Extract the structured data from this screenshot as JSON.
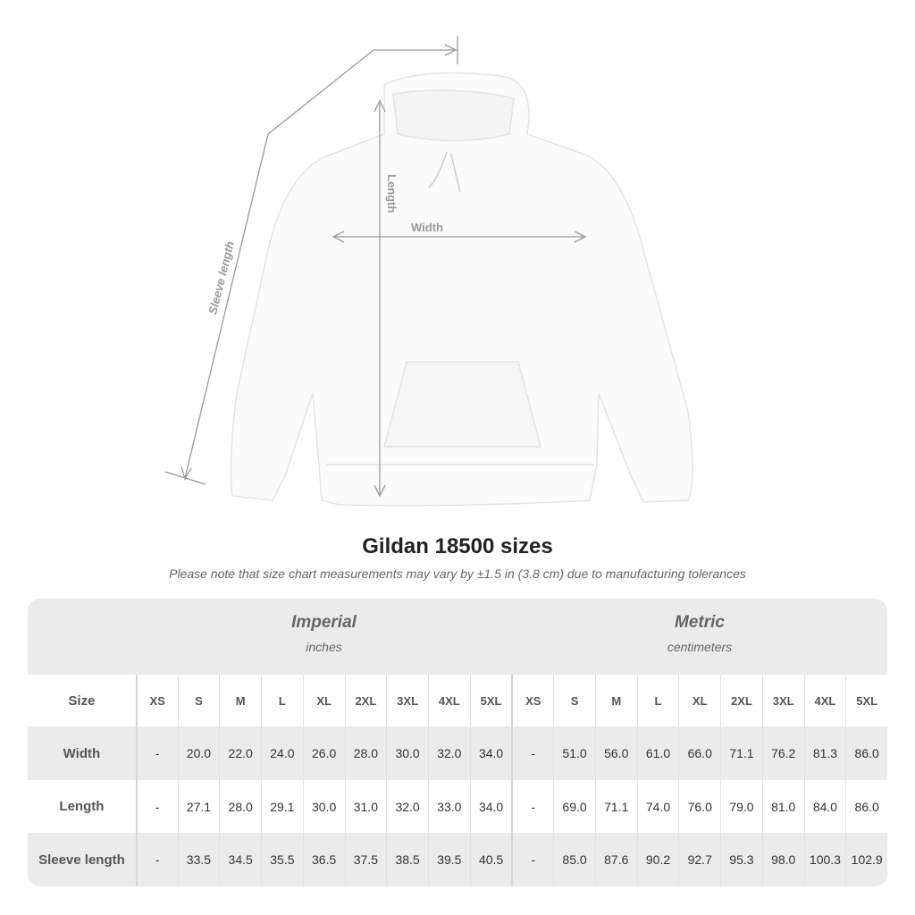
{
  "diagram": {
    "length_label": "Length",
    "width_label": "Width",
    "sleeve_label": "Sleeve length"
  },
  "title": "Gildan 18500 sizes",
  "subtitle": "Please note that size chart measurements may vary by ±1.5 in (3.8 cm) due to manufacturing tolerances",
  "table": {
    "imperial": {
      "name": "Imperial",
      "unit": "inches"
    },
    "metric": {
      "name": "Metric",
      "unit": "centimeters"
    },
    "size_label": "Size",
    "sizes": [
      "XS",
      "S",
      "M",
      "L",
      "XL",
      "2XL",
      "3XL",
      "4XL",
      "5XL"
    ],
    "rows": [
      {
        "label": "Width",
        "imperial": [
          "-",
          "20.0",
          "22.0",
          "24.0",
          "26.0",
          "28.0",
          "30.0",
          "32.0",
          "34.0"
        ],
        "metric": [
          "-",
          "51.0",
          "56.0",
          "61.0",
          "66.0",
          "71.1",
          "76.2",
          "81.3",
          "86.0"
        ]
      },
      {
        "label": "Length",
        "imperial": [
          "-",
          "27.1",
          "28.0",
          "29.1",
          "30.0",
          "31.0",
          "32.0",
          "33.0",
          "34.0"
        ],
        "metric": [
          "-",
          "69.0",
          "71.1",
          "74.0",
          "76.0",
          "79.0",
          "81.0",
          "84.0",
          "86.0"
        ]
      },
      {
        "label": "Sleeve length",
        "imperial": [
          "-",
          "33.5",
          "34.5",
          "35.5",
          "36.5",
          "37.5",
          "38.5",
          "39.5",
          "40.5"
        ],
        "metric": [
          "-",
          "85.0",
          "87.6",
          "90.2",
          "92.7",
          "95.3",
          "98.0",
          "100.3",
          "102.9"
        ]
      }
    ]
  },
  "colors": {
    "panel": "#ebebeb",
    "text": "#555555",
    "measure_line": "#9a9a9a"
  }
}
